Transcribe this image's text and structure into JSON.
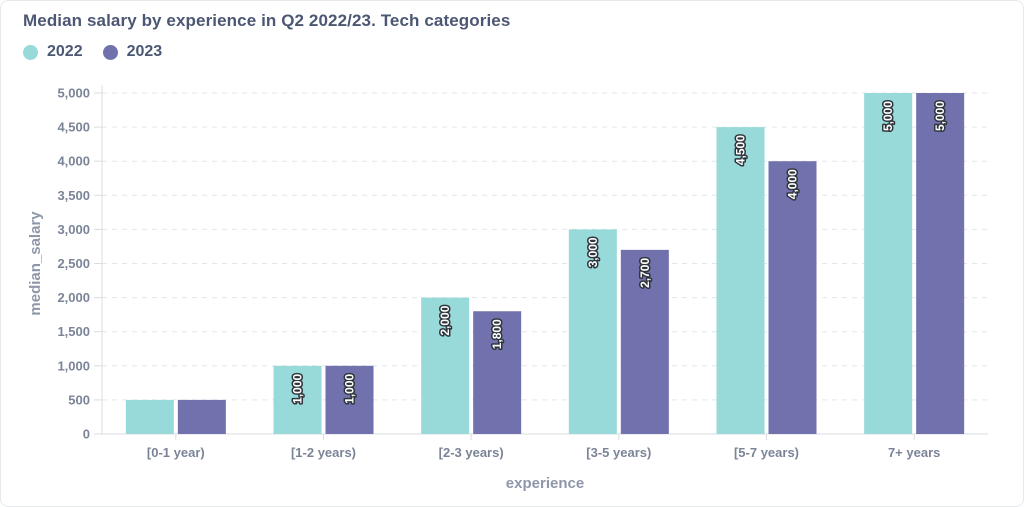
{
  "chart_data": {
    "type": "bar",
    "title": "Median salary by experience in Q2 2022/23. Tech categories",
    "xlabel": "experience",
    "ylabel": "median_salary",
    "categories": [
      "[0-1 year)",
      "[1-2 years)",
      "[2-3 years)",
      "[3-5 years)",
      "[5-7 years)",
      "7+ years"
    ],
    "series": [
      {
        "name": "2022",
        "color": "#98d9d9",
        "values": [
          500,
          1000,
          2000,
          3000,
          4500,
          5000
        ],
        "labels": [
          "",
          "1,000",
          "2,000",
          "3,000",
          "4,500",
          "5,000"
        ]
      },
      {
        "name": "2023",
        "color": "#7172ad",
        "values": [
          500,
          1000,
          1800,
          2700,
          4000,
          5000
        ],
        "labels": [
          "",
          "1,000",
          "1,800",
          "2,700",
          "4,000",
          "5,000"
        ]
      }
    ],
    "ylim": [
      0,
      5000
    ],
    "yticks": [
      0,
      500,
      1000,
      1500,
      2000,
      2500,
      3000,
      3500,
      4000,
      4500,
      5000
    ],
    "ytick_labels": [
      "0",
      "500",
      "1,000",
      "1,500",
      "2,000",
      "2,500",
      "3,000",
      "3,500",
      "4,000",
      "4,500",
      "5,000"
    ],
    "grid": true,
    "legend_position": "top-left"
  }
}
